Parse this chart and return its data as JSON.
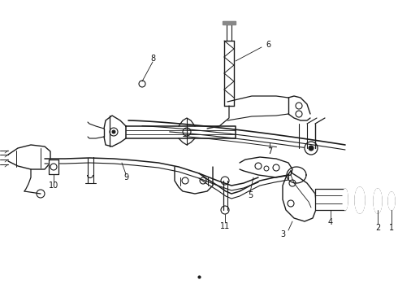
{
  "background_color": "#ffffff",
  "line_color": "#1a1a1a",
  "label_color": "#111111",
  "figsize": [
    4.9,
    3.6
  ],
  "dpi": 100,
  "label_fontsize": 7.0
}
